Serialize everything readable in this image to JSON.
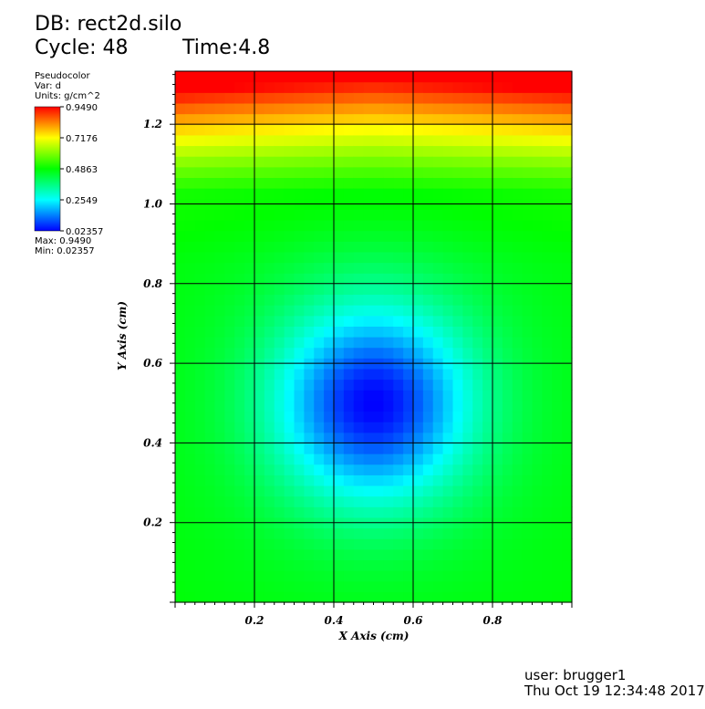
{
  "header": {
    "db": "DB: rect2d.silo",
    "cycle": "Cycle: 48",
    "time": "Time:4.8"
  },
  "legend": {
    "plot_type": "Pseudocolor",
    "var": "Var: d",
    "units": "Units: g/cm^2",
    "ticks": [
      "0.9490",
      "0.7176",
      "0.4863",
      "0.2549",
      "0.02357"
    ],
    "max": "Max:  0.9490",
    "min": "Min:  0.02357",
    "colors": [
      "#ff0000",
      "#ffff00",
      "#00ff00",
      "#00ffff",
      "#0000ff"
    ]
  },
  "footer": {
    "user": "user: brugger1",
    "date": "Thu Oct 19 12:34:48 2017"
  },
  "chart_data": {
    "type": "heatmap",
    "xlabel": "X Axis (cm)",
    "ylabel": "Y Axis (cm)",
    "xlim": [
      0.0,
      1.0
    ],
    "ylim": [
      0.0,
      1.3333
    ],
    "xticks": [
      "0.2",
      "0.4",
      "0.6",
      "0.8"
    ],
    "yticks": [
      "0.2",
      "0.4",
      "0.6",
      "0.8",
      "1.0",
      "1.2"
    ],
    "grid": true,
    "colormap": "hot_desaturated",
    "value_range": [
      0.02357,
      0.949
    ],
    "field_description": "minimum near (0.5, 0.5), rising radially; steep increase toward top edge",
    "center": [
      0.5,
      0.5
    ],
    "nx": 40,
    "ny": 50
  }
}
